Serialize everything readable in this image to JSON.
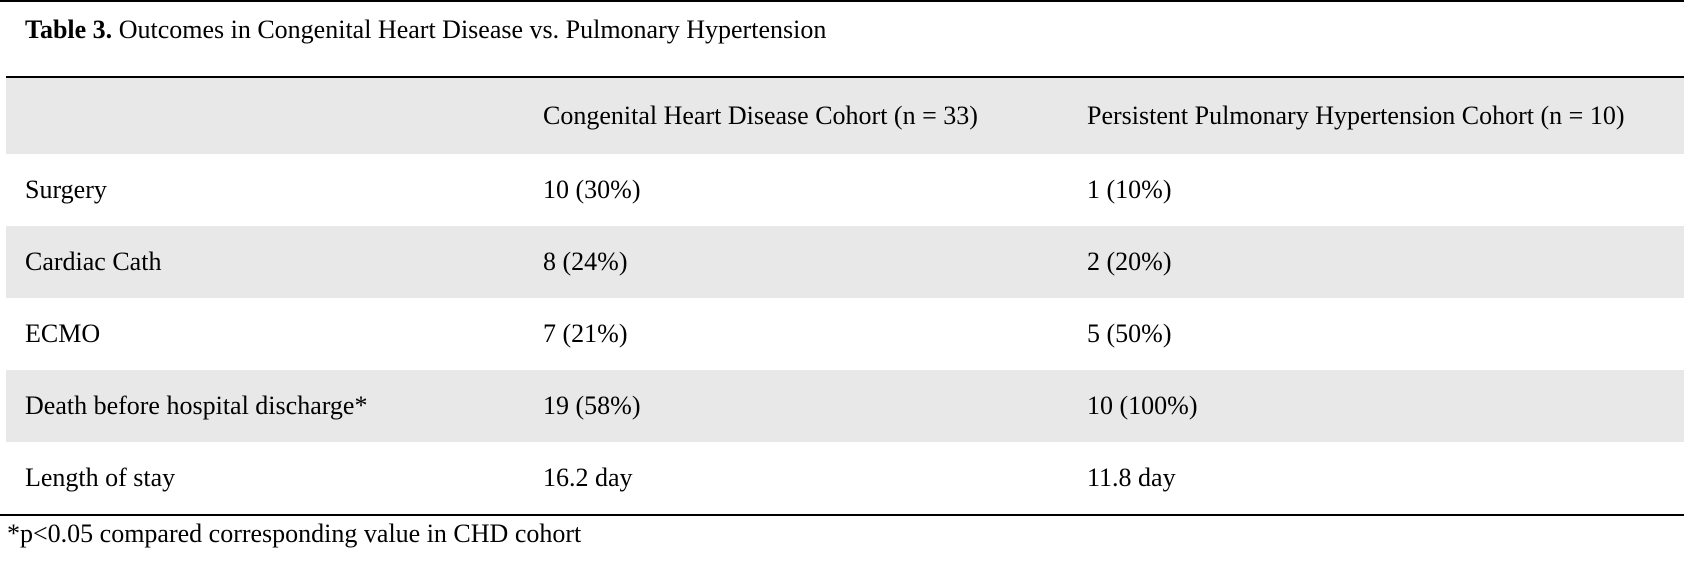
{
  "table": {
    "caption_label": "Table 3.",
    "caption_text": " Outcomes in Congenital Heart Disease vs. Pulmonary Hypertension",
    "columns": [
      "",
      "Congenital Heart Disease Cohort (n = 33)",
      "Persistent Pulmonary Hypertension Cohort (n = 10)"
    ],
    "rows": [
      [
        "Surgery",
        "10 (30%)",
        "1 (10%)"
      ],
      [
        "Cardiac Cath",
        "8 (24%)",
        "2 (20%)"
      ],
      [
        "ECMO",
        "7 (21%)",
        "5 (50%)"
      ],
      [
        "Death before hospital discharge*",
        "19 (58%)",
        "10 (100%)"
      ],
      [
        "Length of stay",
        "16.2 day",
        "11.8 day"
      ]
    ],
    "footnote": "*p<0.05 compared corresponding value in CHD cohort"
  }
}
